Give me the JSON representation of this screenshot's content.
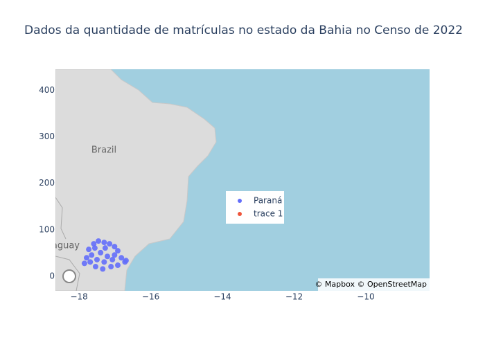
{
  "chart_data": {
    "type": "scatter",
    "title": "Dados da quantidade de matrículas no estado da Bahia no Censo de 2022",
    "xlim": [
      -18.66,
      -8.22
    ],
    "xticks": [
      {
        "value": -18,
        "label": "−18"
      },
      {
        "value": -16,
        "label": "−16"
      },
      {
        "value": -14,
        "label": "−14"
      },
      {
        "value": -12,
        "label": "−12"
      },
      {
        "value": -10,
        "label": "−10"
      }
    ],
    "ylim": [
      -31,
      445
    ],
    "yticks": [
      0,
      100,
      200,
      300,
      400
    ],
    "map_labels": [
      "Brazil",
      "Paraguay"
    ],
    "attribution": "© Mapbox © OpenStreetMap",
    "series": [
      {
        "name": "Paraná",
        "color": "#636efa",
        "x": [
          -17.79,
          -17.85,
          -17.73,
          -17.59,
          -17.46,
          -17.3,
          -17.15,
          -17.01,
          -16.92,
          -16.82,
          -16.72,
          -16.69,
          -17.54,
          -17.34,
          -17.11,
          -16.92,
          -17.65,
          -17.4,
          -17.21,
          -17.07,
          -17.5,
          -17.3,
          -17.69,
          -17.01,
          -17.56,
          -17.27
        ],
        "values": [
          40,
          28,
          58,
          70,
          76,
          73,
          70,
          64,
          55,
          40,
          31,
          34,
          21,
          16,
          21,
          24,
          46,
          51,
          43,
          36,
          36,
          31,
          31,
          46,
          61,
          61
        ]
      },
      {
        "name": "trace 1",
        "color": "#ef553b",
        "x": [],
        "values": []
      }
    ]
  }
}
